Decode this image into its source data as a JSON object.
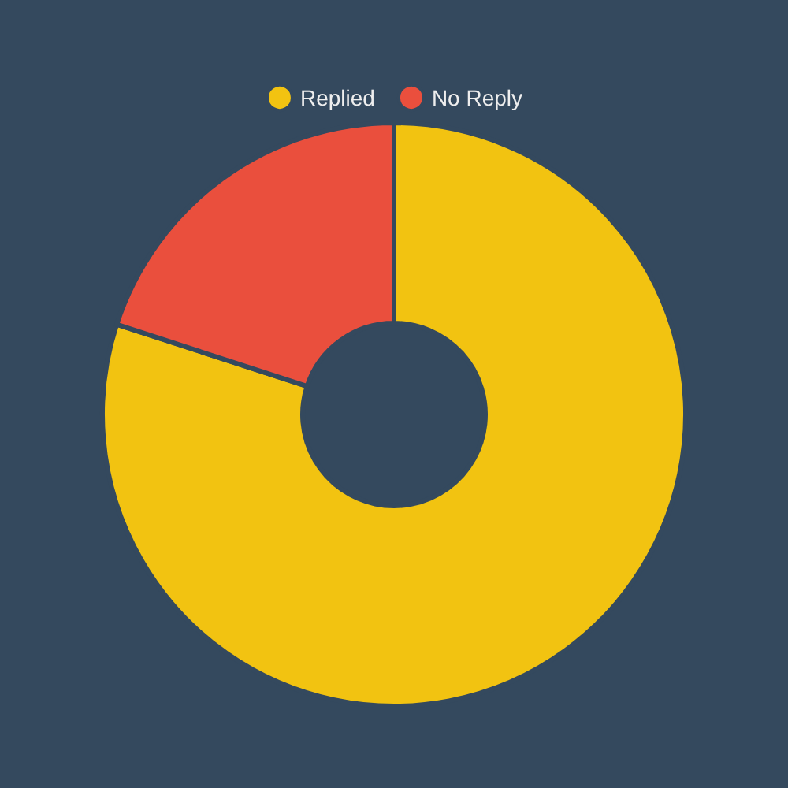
{
  "chart_data": {
    "type": "donut",
    "categories": [
      "Replied",
      "No Reply"
    ],
    "values": [
      80,
      20
    ],
    "colors": [
      "#f2c311",
      "#ea4f3d"
    ],
    "legend": "top"
  }
}
